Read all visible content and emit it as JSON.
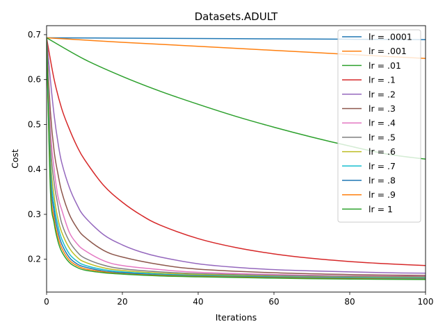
{
  "chart_data": {
    "type": "line",
    "title": "Datasets.ADULT",
    "xlabel": "Iterations",
    "ylabel": "Cost",
    "xlim": [
      0,
      100
    ],
    "ylim": [
      0.127,
      0.72
    ],
    "xticks": [
      0,
      20,
      40,
      60,
      80,
      100
    ],
    "xtick_labels": [
      "0",
      "20",
      "40",
      "60",
      "80",
      "100"
    ],
    "yticks": [
      0.2,
      0.3,
      0.4,
      0.5,
      0.6,
      0.7
    ],
    "ytick_labels": [
      "0.2",
      "0.3",
      "0.4",
      "0.5",
      "0.6",
      "0.7"
    ],
    "grid": false,
    "legend_position": "top-right",
    "start_value": 0.693,
    "series": [
      {
        "name": "lr = .0001",
        "color": "#1f77b4",
        "x": [
          0,
          20,
          40,
          60,
          80,
          100
        ],
        "y": [
          0.693,
          0.6922,
          0.6914,
          0.6906,
          0.6898,
          0.689
        ]
      },
      {
        "name": "lr = .001",
        "color": "#ff7f0e",
        "x": [
          0,
          20,
          40,
          60,
          80,
          100
        ],
        "y": [
          0.693,
          0.683,
          0.674,
          0.665,
          0.656,
          0.647
        ]
      },
      {
        "name": "lr = .01",
        "color": "#2ca02c",
        "x": [
          0,
          10,
          20,
          30,
          40,
          50,
          60,
          70,
          80,
          90,
          100
        ],
        "y": [
          0.693,
          0.645,
          0.607,
          0.574,
          0.545,
          0.518,
          0.494,
          0.472,
          0.452,
          0.434,
          0.423
        ]
      },
      {
        "name": "lr = .1",
        "color": "#d62728",
        "x": [
          0,
          2,
          4,
          6,
          8,
          10,
          15,
          20,
          25,
          30,
          40,
          50,
          60,
          70,
          80,
          90,
          100
        ],
        "y": [
          0.693,
          0.6,
          0.535,
          0.49,
          0.452,
          0.422,
          0.365,
          0.327,
          0.298,
          0.276,
          0.246,
          0.226,
          0.212,
          0.202,
          0.195,
          0.19,
          0.186
        ]
      },
      {
        "name": "lr = .2",
        "color": "#9467bd",
        "x": [
          0,
          1,
          2,
          3,
          4,
          6,
          8,
          10,
          15,
          20,
          25,
          30,
          40,
          50,
          60,
          70,
          80,
          90,
          100
        ],
        "y": [
          0.693,
          0.6,
          0.52,
          0.46,
          0.415,
          0.36,
          0.322,
          0.295,
          0.255,
          0.232,
          0.216,
          0.205,
          0.19,
          0.182,
          0.177,
          0.174,
          0.172,
          0.17,
          0.169
        ]
      },
      {
        "name": "lr = .3",
        "color": "#8c564b",
        "x": [
          0,
          1,
          2,
          3,
          4,
          6,
          8,
          10,
          15,
          20,
          30,
          40,
          60,
          80,
          100
        ],
        "y": [
          0.693,
          0.53,
          0.44,
          0.39,
          0.35,
          0.3,
          0.27,
          0.25,
          0.22,
          0.205,
          0.188,
          0.178,
          0.17,
          0.166,
          0.164
        ]
      },
      {
        "name": "lr = .4",
        "color": "#e377c2",
        "x": [
          0,
          1,
          2,
          3,
          4,
          6,
          8,
          10,
          15,
          20,
          30,
          40,
          60,
          80,
          100
        ],
        "y": [
          0.693,
          0.49,
          0.4,
          0.34,
          0.31,
          0.26,
          0.235,
          0.22,
          0.197,
          0.186,
          0.177,
          0.171,
          0.166,
          0.163,
          0.162
        ]
      },
      {
        "name": "lr = .5",
        "color": "#7f7f7f",
        "x": [
          0,
          1,
          2,
          3,
          4,
          6,
          8,
          10,
          15,
          20,
          30,
          40,
          60,
          80,
          100
        ],
        "y": [
          0.693,
          0.46,
          0.37,
          0.32,
          0.28,
          0.24,
          0.217,
          0.203,
          0.187,
          0.179,
          0.172,
          0.168,
          0.164,
          0.162,
          0.161
        ]
      },
      {
        "name": "lr = .6",
        "color": "#bcbd22",
        "x": [
          0,
          1,
          2,
          3,
          4,
          6,
          8,
          10,
          15,
          20,
          30,
          40,
          60,
          80,
          100
        ],
        "y": [
          0.693,
          0.43,
          0.34,
          0.29,
          0.26,
          0.225,
          0.205,
          0.194,
          0.181,
          0.175,
          0.169,
          0.166,
          0.162,
          0.16,
          0.159
        ]
      },
      {
        "name": "lr = .7",
        "color": "#17becf",
        "x": [
          0,
          1,
          2,
          3,
          4,
          6,
          8,
          10,
          15,
          20,
          30,
          40,
          60,
          80,
          100
        ],
        "y": [
          0.693,
          0.41,
          0.32,
          0.275,
          0.245,
          0.212,
          0.196,
          0.187,
          0.177,
          0.172,
          0.167,
          0.164,
          0.161,
          0.159,
          0.158
        ]
      },
      {
        "name": "lr = .8",
        "color": "#1f77b4",
        "x": [
          0,
          1,
          2,
          3,
          4,
          6,
          8,
          10,
          15,
          20,
          30,
          40,
          60,
          80,
          100
        ],
        "y": [
          0.693,
          0.39,
          0.305,
          0.262,
          0.234,
          0.204,
          0.19,
          0.183,
          0.174,
          0.17,
          0.165,
          0.163,
          0.16,
          0.158,
          0.157
        ]
      },
      {
        "name": "lr = .9",
        "color": "#ff7f0e",
        "x": [
          0,
          1,
          2,
          3,
          4,
          6,
          8,
          10,
          15,
          20,
          30,
          40,
          60,
          80,
          100
        ],
        "y": [
          0.693,
          0.37,
          0.29,
          0.25,
          0.225,
          0.198,
          0.186,
          0.179,
          0.172,
          0.168,
          0.164,
          0.162,
          0.159,
          0.157,
          0.156
        ]
      },
      {
        "name": "lr = 1",
        "color": "#2ca02c",
        "x": [
          0,
          1,
          2,
          3,
          4,
          6,
          8,
          10,
          15,
          20,
          30,
          40,
          60,
          80,
          100
        ],
        "y": [
          0.693,
          0.355,
          0.28,
          0.24,
          0.217,
          0.193,
          0.182,
          0.176,
          0.17,
          0.167,
          0.163,
          0.161,
          0.158,
          0.156,
          0.155
        ]
      }
    ]
  }
}
